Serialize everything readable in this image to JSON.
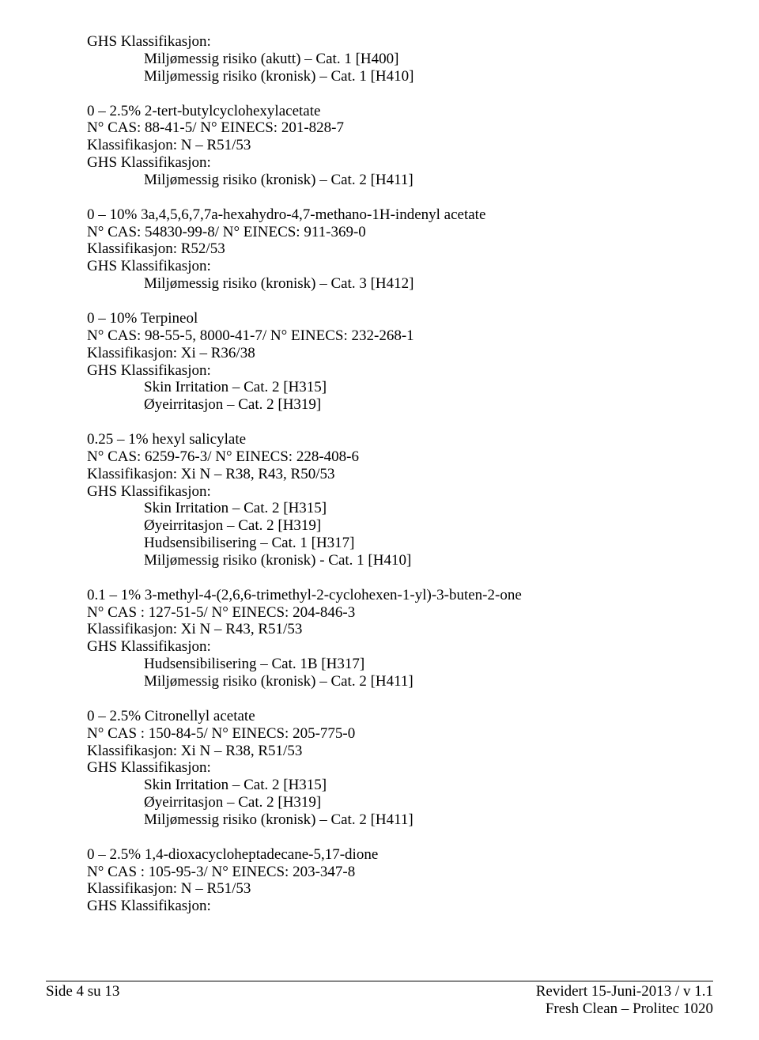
{
  "sections": [
    {
      "heading": null,
      "lines": [
        "GHS Klassifikasjon:"
      ],
      "indented": [
        "Miljømessig risiko (akutt) – Cat. 1 [H400]",
        "Miljømessig risiko (kronisk) – Cat. 1 [H410]"
      ]
    },
    {
      "lines": [
        "0 – 2.5%  2-tert-butylcyclohexylacetate",
        "N° CAS: 88-41-5/ N° EINECS: 201-828-7",
        "Klassifikasjon: N – R51/53",
        "GHS Klassifikasjon:"
      ],
      "indented": [
        "Miljømessig risiko (kronisk) – Cat. 2 [H411]"
      ]
    },
    {
      "lines": [
        "0 – 10%  3a,4,5,6,7,7a-hexahydro-4,7-methano-1H-indenyl acetate",
        "N° CAS: 54830-99-8/ N° EINECS: 911-369-0",
        "Klassifikasjon: R52/53",
        "GHS Klassifikasjon:"
      ],
      "indented": [
        "Miljømessig risiko (kronisk) – Cat. 3 [H412]"
      ]
    },
    {
      "lines": [
        "0 – 10%  Terpineol",
        "N° CAS: 98-55-5, 8000-41-7/ N° EINECS: 232-268-1",
        "Klassifikasjon: Xi – R36/38",
        "GHS Klassifikasjon:"
      ],
      "indented": [
        "Skin Irritation – Cat. 2 [H315]",
        "Øyeirritasjon – Cat. 2 [H319]"
      ]
    },
    {
      "lines": [
        "0.25 – 1%  hexyl salicylate",
        "N° CAS: 6259-76-3/ N° EINECS:  228-408-6",
        "Klassifikasjon: Xi N – R38, R43, R50/53",
        "GHS Klassifikasjon:"
      ],
      "indented": [
        "Skin Irritation – Cat. 2 [H315]",
        "Øyeirritasjon – Cat. 2 [H319]",
        "Hudsensibilisering – Cat. 1 [H317]",
        "Miljømessig risiko (kronisk) - Cat. 1 [H410]"
      ]
    },
    {
      "lines": [
        "0.1 – 1%  3-methyl-4-(2,6,6-trimethyl-2-cyclohexen-1-yl)-3-buten-2-one",
        "N° CAS : 127-51-5/ N° EINECS: 204-846-3",
        "Klassifikasjon: Xi N – R43, R51/53",
        "GHS Klassifikasjon:"
      ],
      "indented": [
        "Hudsensibilisering – Cat. 1B [H317]",
        "Miljømessig risiko (kronisk) – Cat. 2 [H411]"
      ]
    },
    {
      "lines": [
        "0 – 2.5%  Citronellyl acetate",
        "N° CAS : 150-84-5/ N° EINECS: 205-775-0",
        "Klassifikasjon: Xi N – R38, R51/53",
        "GHS Klassifikasjon:"
      ],
      "indented": [
        "Skin Irritation – Cat. 2 [H315]",
        "Øyeirritasjon – Cat. 2 [H319]",
        "Miljømessig risiko (kronisk) – Cat. 2 [H411]"
      ]
    },
    {
      "lines": [
        "0 – 2.5%  1,4-dioxacycloheptadecane-5,17-dione",
        "N° CAS : 105-95-3/ N° EINECS: 203-347-8",
        "Klassifikasjon: N – R51/53",
        "GHS Klassifikasjon:"
      ],
      "indented": []
    }
  ],
  "footer": {
    "left": "Side 4 su 13",
    "right1": "Revidert 15-Juni-2013 / v 1.1",
    "right2": "Fresh Clean – Prolitec 1020"
  }
}
